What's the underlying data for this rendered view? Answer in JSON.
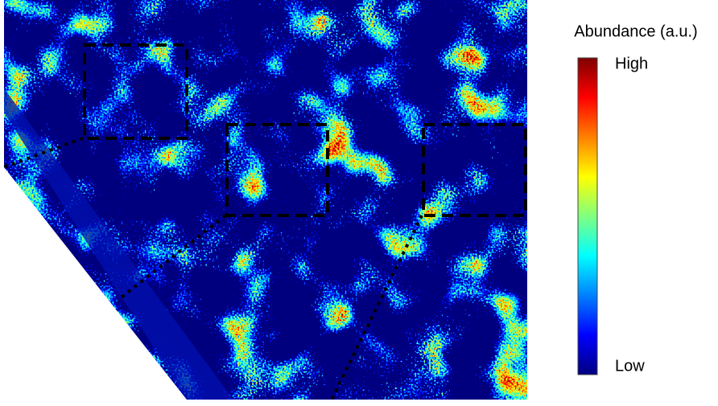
{
  "colorbar": {
    "title": "Abundance (a.u.)",
    "high_label": "High",
    "low_label": "Low"
  }
}
